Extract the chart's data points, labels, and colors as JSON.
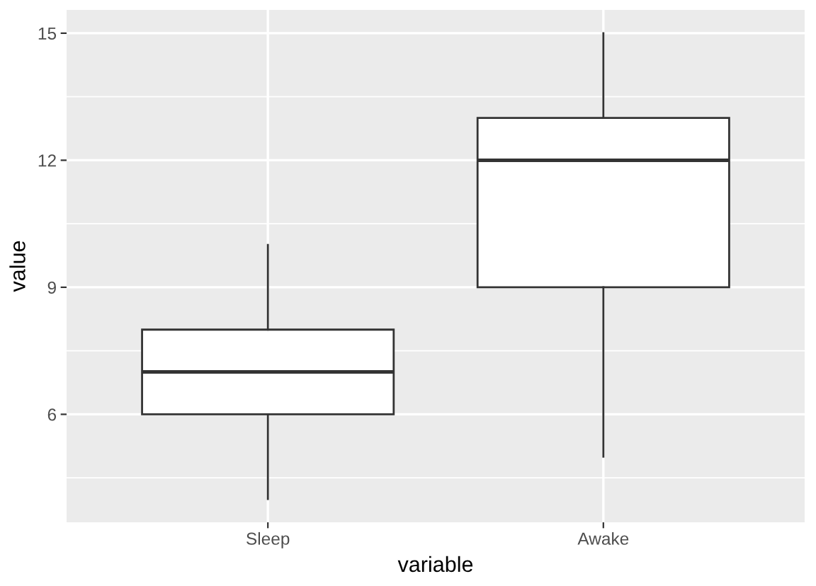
{
  "chart_data": {
    "type": "box",
    "xlabel": "variable",
    "ylabel": "value",
    "categories": [
      "Sleep",
      "Awake"
    ],
    "series": [
      {
        "color": "#ffffff",
        "boxes": [
          {
            "low": 4,
            "q1": 6,
            "median": 7,
            "q3": 8,
            "high": 10
          },
          {
            "low": 5,
            "q1": 9,
            "median": 12,
            "q3": 13,
            "high": 15
          }
        ]
      }
    ],
    "ylim": [
      3.45,
      15.55
    ],
    "yticks": [
      6,
      9,
      12,
      15
    ],
    "grid": true
  }
}
